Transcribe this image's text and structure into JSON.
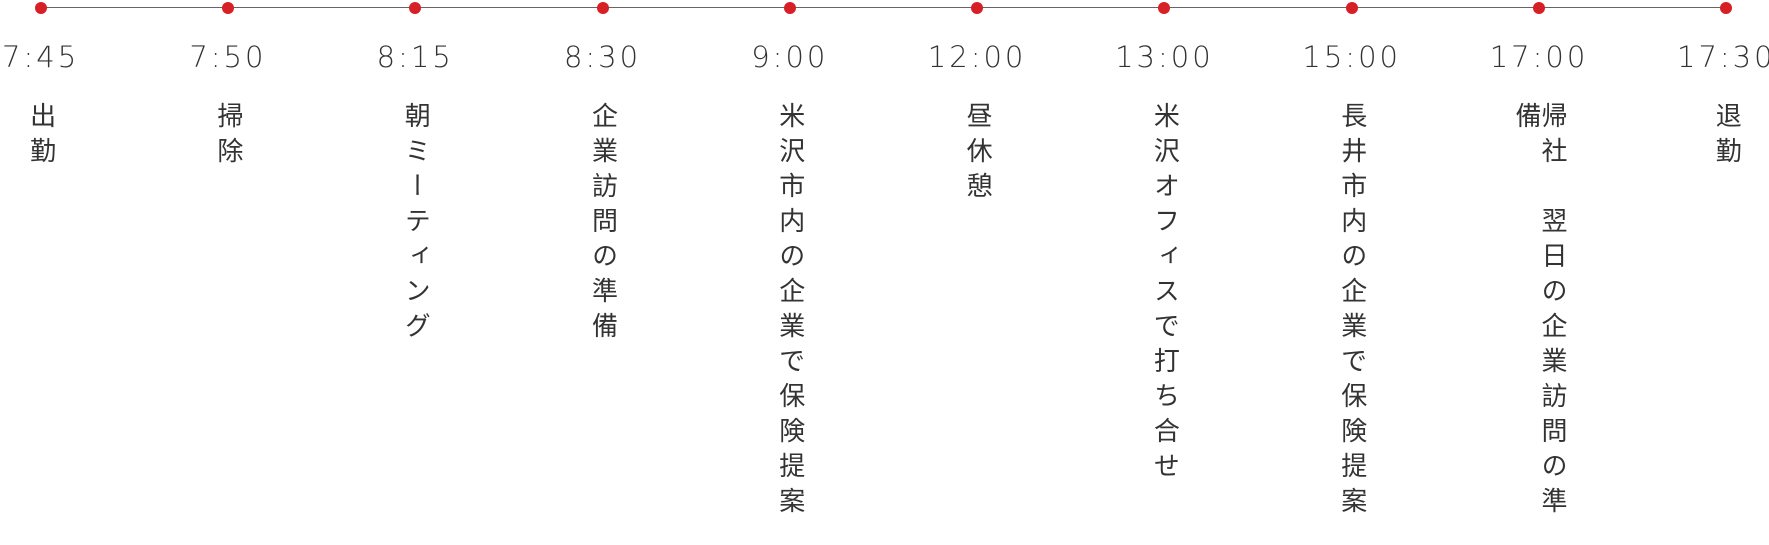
{
  "timeline": {
    "items": [
      {
        "time": "7:45",
        "label": "出勤"
      },
      {
        "time": "7:50",
        "label": "掃除"
      },
      {
        "time": "8:15",
        "label": "朝ミーティング"
      },
      {
        "time": "8:30",
        "label": "企業訪問の準備"
      },
      {
        "time": "9:00",
        "label": "米沢市内の企業で保険提案"
      },
      {
        "time": "12:00",
        "label": "昼休憩"
      },
      {
        "time": "13:00",
        "label": "米沢オフィスで打ち合せ"
      },
      {
        "time": "15:00",
        "label": "長井市内の企業で保険提案"
      },
      {
        "time": "17:00",
        "label": "帰社　翌日の企業訪問の準備"
      },
      {
        "time": "17:30",
        "label": "退勤"
      }
    ]
  }
}
